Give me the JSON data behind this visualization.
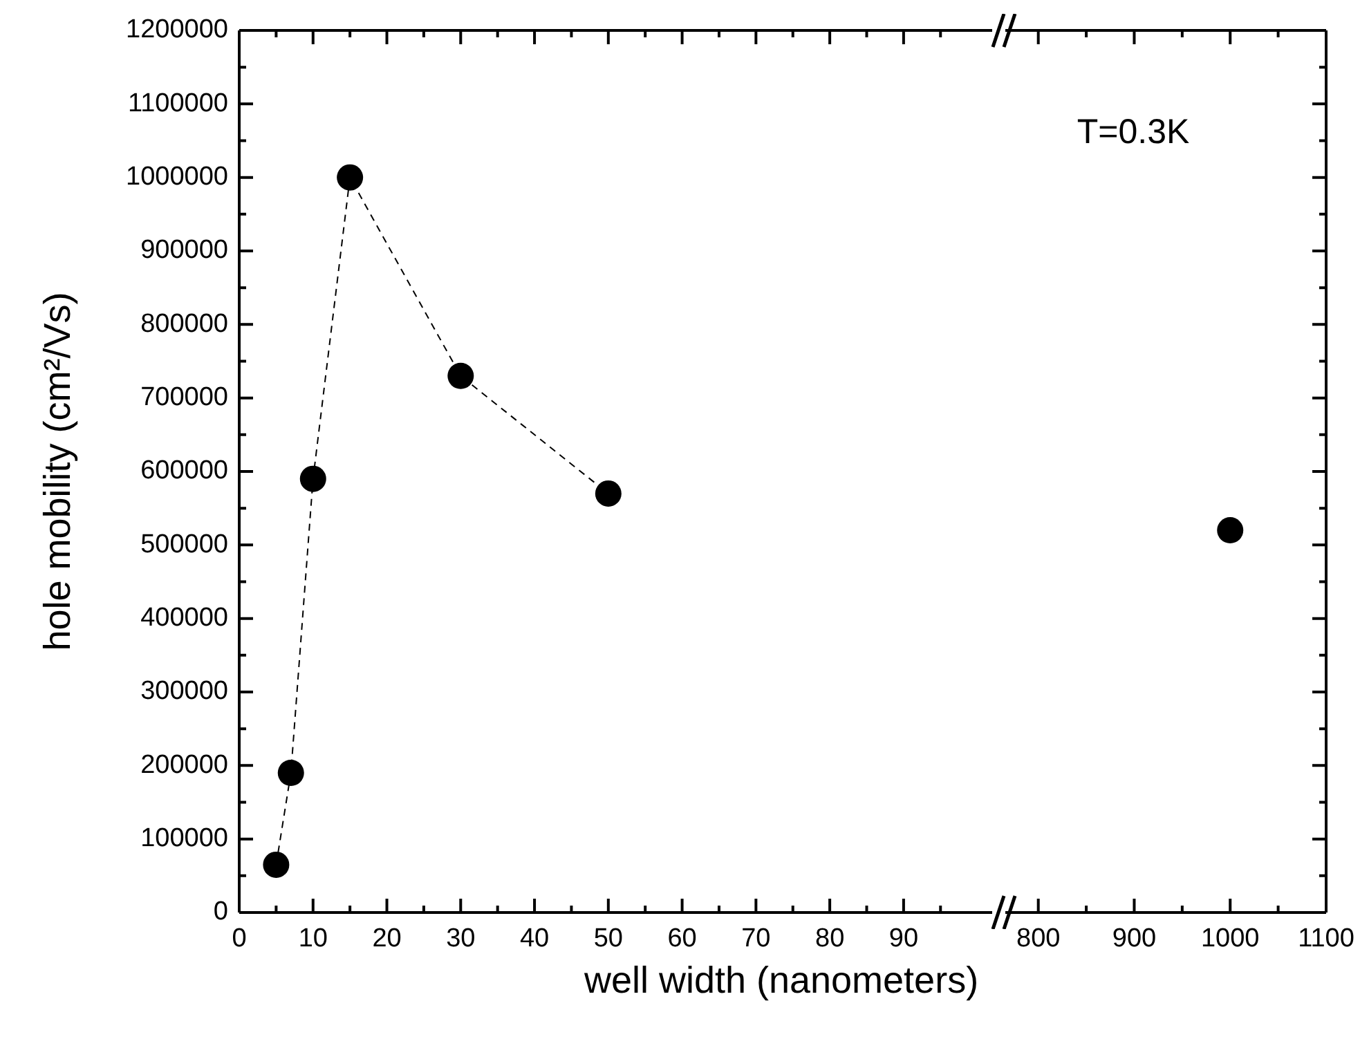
{
  "chart_data": [
    {
      "type": "line",
      "xlabel": "well width (nanometers)",
      "ylabel": "hole mobility (cm²/Vs)",
      "x": [
        5,
        7,
        10,
        15,
        30,
        50
      ],
      "series": [
        {
          "color": "#000000",
          "values": [
            65000,
            190000,
            590000,
            1000000,
            730000,
            570000
          ]
        }
      ],
      "xlim": [
        0,
        102
      ],
      "xticks": [
        0,
        {
          "value": 5,
          "label": null
        },
        10,
        {
          "value": 15,
          "label": null
        },
        20,
        {
          "value": 25,
          "label": null
        },
        30,
        {
          "value": 35,
          "label": null
        },
        40,
        {
          "value": 45,
          "label": null
        },
        50,
        {
          "value": 55,
          "label": null
        },
        60,
        {
          "value": 65,
          "label": null
        },
        70,
        {
          "value": 75,
          "label": null
        },
        80,
        {
          "value": 85,
          "label": null
        },
        90,
        {
          "value": 95,
          "label": null
        }
      ],
      "ylim": [
        0,
        1200000
      ],
      "yticks": [
        0,
        {
          "value": 50000,
          "label": null
        },
        100000,
        {
          "value": 150000,
          "label": null
        },
        200000,
        {
          "value": 250000,
          "label": null
        },
        300000,
        {
          "value": 350000,
          "label": null
        },
        400000,
        {
          "value": 450000,
          "label": null
        },
        500000,
        {
          "value": 550000,
          "label": null
        },
        600000,
        {
          "value": 650000,
          "label": null
        },
        700000,
        {
          "value": 750000,
          "label": null
        },
        800000,
        {
          "value": 850000,
          "label": null
        },
        900000,
        {
          "value": 950000,
          "label": null
        },
        1000000,
        {
          "value": 1050000,
          "label": null
        },
        1100000,
        {
          "value": 1150000,
          "label": null
        },
        1200000
      ],
      "marker": "circle",
      "line_style": "dashed"
    },
    {
      "type": "line",
      "x": [
        1000
      ],
      "series": [
        {
          "color": "#000000",
          "values": [
            520000
          ]
        }
      ],
      "annotations": [
        "T=0.3K"
      ],
      "xlim": [
        800,
        1100
      ],
      "xticks": [
        800,
        {
          "value": 850,
          "label": null
        },
        900,
        {
          "value": 950,
          "label": null
        },
        1000,
        {
          "value": 1050,
          "label": null
        },
        1100
      ],
      "ylim": [
        0,
        1200000
      ],
      "yticks": [
        0,
        {
          "value": 50000,
          "label": null
        },
        100000,
        {
          "value": 150000,
          "label": null
        },
        200000,
        {
          "value": 250000,
          "label": null
        },
        300000,
        {
          "value": 350000,
          "label": null
        },
        400000,
        {
          "value": 450000,
          "label": null
        },
        500000,
        {
          "value": 550000,
          "label": null
        },
        600000,
        {
          "value": 650000,
          "label": null
        },
        700000,
        {
          "value": 750000,
          "label": null
        },
        800000,
        {
          "value": 850000,
          "label": null
        },
        900000,
        {
          "value": 950000,
          "label": null
        },
        1000000,
        {
          "value": 1050000,
          "label": null
        },
        1100000,
        {
          "value": 1150000,
          "label": null
        },
        1200000
      ],
      "tick_labels": "x",
      "marker": "circle"
    }
  ]
}
